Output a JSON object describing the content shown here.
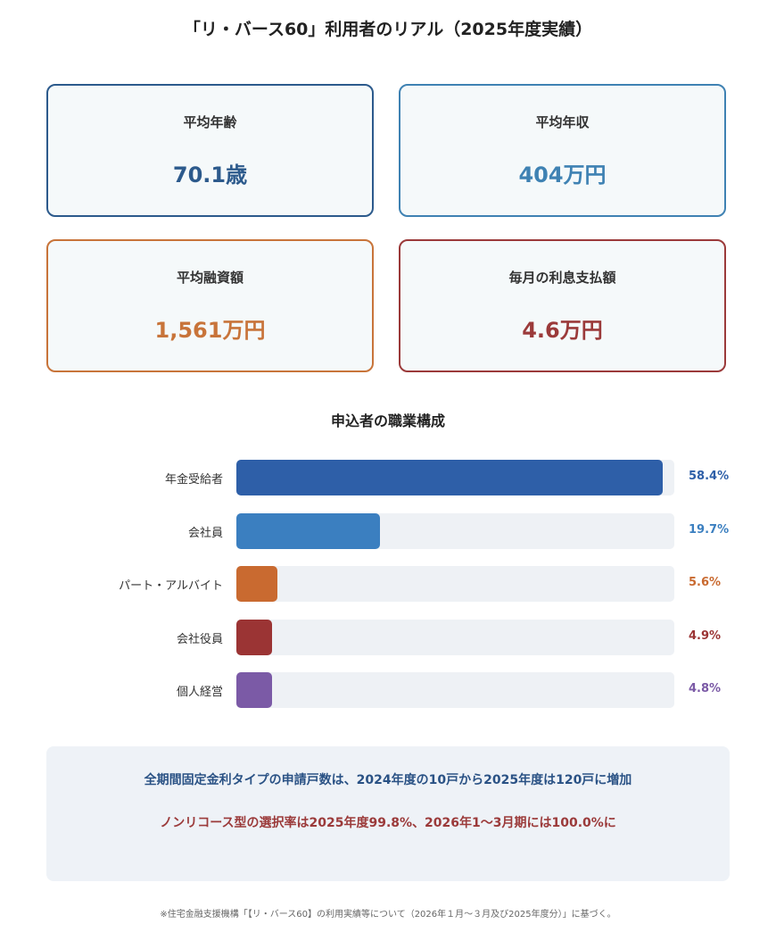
{
  "title": "「リ・バース60」利用者のリアル（2025年度実績）",
  "cards": [
    {
      "label": "平均年齢",
      "value": "70.1歳",
      "color": "#2c5a8c"
    },
    {
      "label": "平均年収",
      "value": "404万円",
      "color": "#3f82b3"
    },
    {
      "label": "平均融資額",
      "value": "1,561万円",
      "color": "#c8743a"
    },
    {
      "label": "毎月の利息支払額",
      "value": "4.6万円",
      "color": "#9b3a3a"
    }
  ],
  "chart_data": {
    "type": "bar",
    "title": "申込者の職業構成",
    "categories": [
      "年金受給者",
      "会社員",
      "パート・アルバイト",
      "会社役員",
      "個人経営"
    ],
    "values": [
      58.4,
      19.7,
      5.6,
      4.9,
      4.8
    ],
    "value_labels": [
      "58.4%",
      "19.7%",
      "5.6%",
      "4.9%",
      "4.8%"
    ],
    "colors": [
      "#2e5fa8",
      "#3b7fc0",
      "#c96a30",
      "#9b3434",
      "#7b5aa6"
    ],
    "unit": "%",
    "grid": false
  },
  "notes": {
    "line1": "全期間固定金利タイプの申請戸数は、2024年度の10戸から2025年度は120戸に増加",
    "line2": "ノンリコース型の選択率は2025年度99.8%、2026年1～3月期には100.0%に"
  },
  "footnote": "※住宅金融支援機構「【リ・バース60】の利用実績等について（2026年１月～３月及び2025年度分）」に基づく。"
}
